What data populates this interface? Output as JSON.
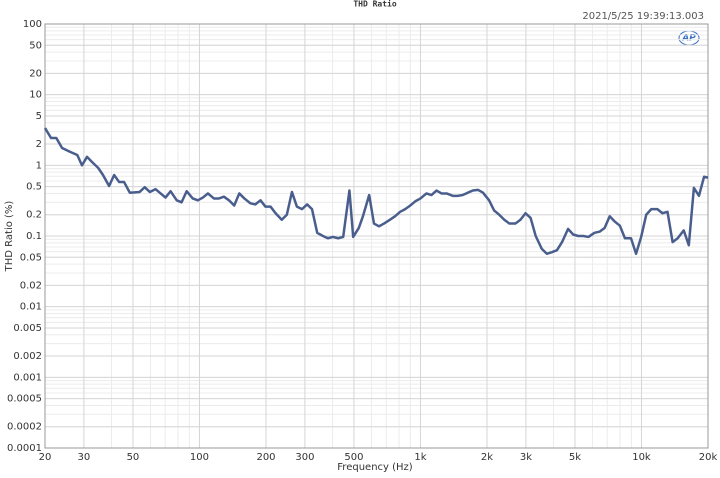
{
  "chart_data": {
    "type": "line",
    "title": "THD Ratio",
    "timestamp": "2021/5/25 19:39:13.003",
    "logo": "AP",
    "x_label": "Frequency (Hz)",
    "y_label": "THD Ratio (%)",
    "xscale": "log",
    "yscale": "log",
    "grid": true,
    "xlim": [
      20,
      20000
    ],
    "ylim": [
      0.0001,
      100
    ],
    "xticks": [
      20,
      30,
      50,
      100,
      200,
      300,
      500,
      {
        "value": 1000,
        "label": "1k"
      },
      {
        "value": 2000,
        "label": "2k"
      },
      {
        "value": 3000,
        "label": "3k"
      },
      {
        "value": 5000,
        "label": "5k"
      },
      {
        "value": 10000,
        "label": "10k"
      },
      {
        "value": 20000,
        "label": "20k"
      }
    ],
    "yticks": [
      0.0001,
      0.0002,
      0.0005,
      0.001,
      0.002,
      0.005,
      0.01,
      0.02,
      0.05,
      0.1,
      0.2,
      0.5,
      1,
      2,
      5,
      10,
      20,
      50,
      100
    ],
    "x": [
      20,
      21.3,
      22.5,
      23.9,
      26,
      28,
      29.4,
      31,
      32.6,
      34.8,
      36.6,
      39,
      41.1,
      43.3,
      45.6,
      48.4,
      53.6,
      56.5,
      59.6,
      63.3,
      70.2,
      74,
      78.9,
      83,
      87.5,
      93.2,
      98.3,
      103.6,
      109.2,
      116.2,
      122.5,
      129,
      136,
      143.6,
      151.4,
      159.6,
      170,
      179,
      188.8,
      199,
      209.8,
      221,
      235.7,
      248.5,
      262,
      276,
      291,
      307,
      323,
      341,
      362,
      381,
      402,
      424,
      447,
      477,
      496,
      526,
      549,
      586,
      616,
      649,
      684,
      728,
      767,
      809,
      853,
      899,
      948,
      1000,
      1064,
      1121,
      1182,
      1246,
      1314,
      1400,
      1473,
      1553,
      1637,
      1726,
      1820,
      1919,
      2044,
      2154,
      2271,
      2395,
      2525,
      2688,
      2834,
      2988,
      3150,
      3322,
      3537,
      3729,
      3932,
      4146,
      4371,
      4655,
      4908,
      5175,
      5457,
      5753,
      6127,
      6460,
      6811,
      7182,
      7572,
      7984,
      8418,
      8965,
      9452,
      9966,
      10508,
      11079,
      11800,
      12441,
      13117,
      13831,
      14583,
      15531,
      16376,
      17266,
      18204,
      19200,
      20000
    ],
    "series": [
      {
        "name": "THD Ratio",
        "color": "#4a5e8e",
        "values": [
          3.38,
          2.44,
          2.44,
          1.76,
          1.55,
          1.4,
          1.0,
          1.32,
          1.12,
          0.92,
          0.73,
          0.51,
          0.73,
          0.58,
          0.58,
          0.41,
          0.42,
          0.49,
          0.42,
          0.46,
          0.35,
          0.43,
          0.32,
          0.3,
          0.43,
          0.34,
          0.32,
          0.35,
          0.4,
          0.34,
          0.34,
          0.36,
          0.32,
          0.27,
          0.4,
          0.34,
          0.29,
          0.28,
          0.32,
          0.26,
          0.26,
          0.21,
          0.17,
          0.2,
          0.42,
          0.26,
          0.24,
          0.28,
          0.24,
          0.111,
          0.1,
          0.093,
          0.097,
          0.093,
          0.097,
          0.44,
          0.097,
          0.13,
          0.19,
          0.38,
          0.15,
          0.137,
          0.15,
          0.17,
          0.19,
          0.22,
          0.24,
          0.27,
          0.31,
          0.34,
          0.4,
          0.38,
          0.44,
          0.4,
          0.4,
          0.37,
          0.37,
          0.38,
          0.41,
          0.44,
          0.45,
          0.41,
          0.32,
          0.23,
          0.2,
          0.17,
          0.15,
          0.15,
          0.17,
          0.21,
          0.18,
          0.1,
          0.066,
          0.056,
          0.059,
          0.063,
          0.082,
          0.126,
          0.105,
          0.1,
          0.1,
          0.097,
          0.111,
          0.115,
          0.13,
          0.19,
          0.16,
          0.14,
          0.093,
          0.093,
          0.056,
          0.097,
          0.2,
          0.24,
          0.24,
          0.21,
          0.22,
          0.082,
          0.093,
          0.12,
          0.074,
          0.48,
          0.37,
          0.69,
          0.67
        ]
      }
    ]
  }
}
